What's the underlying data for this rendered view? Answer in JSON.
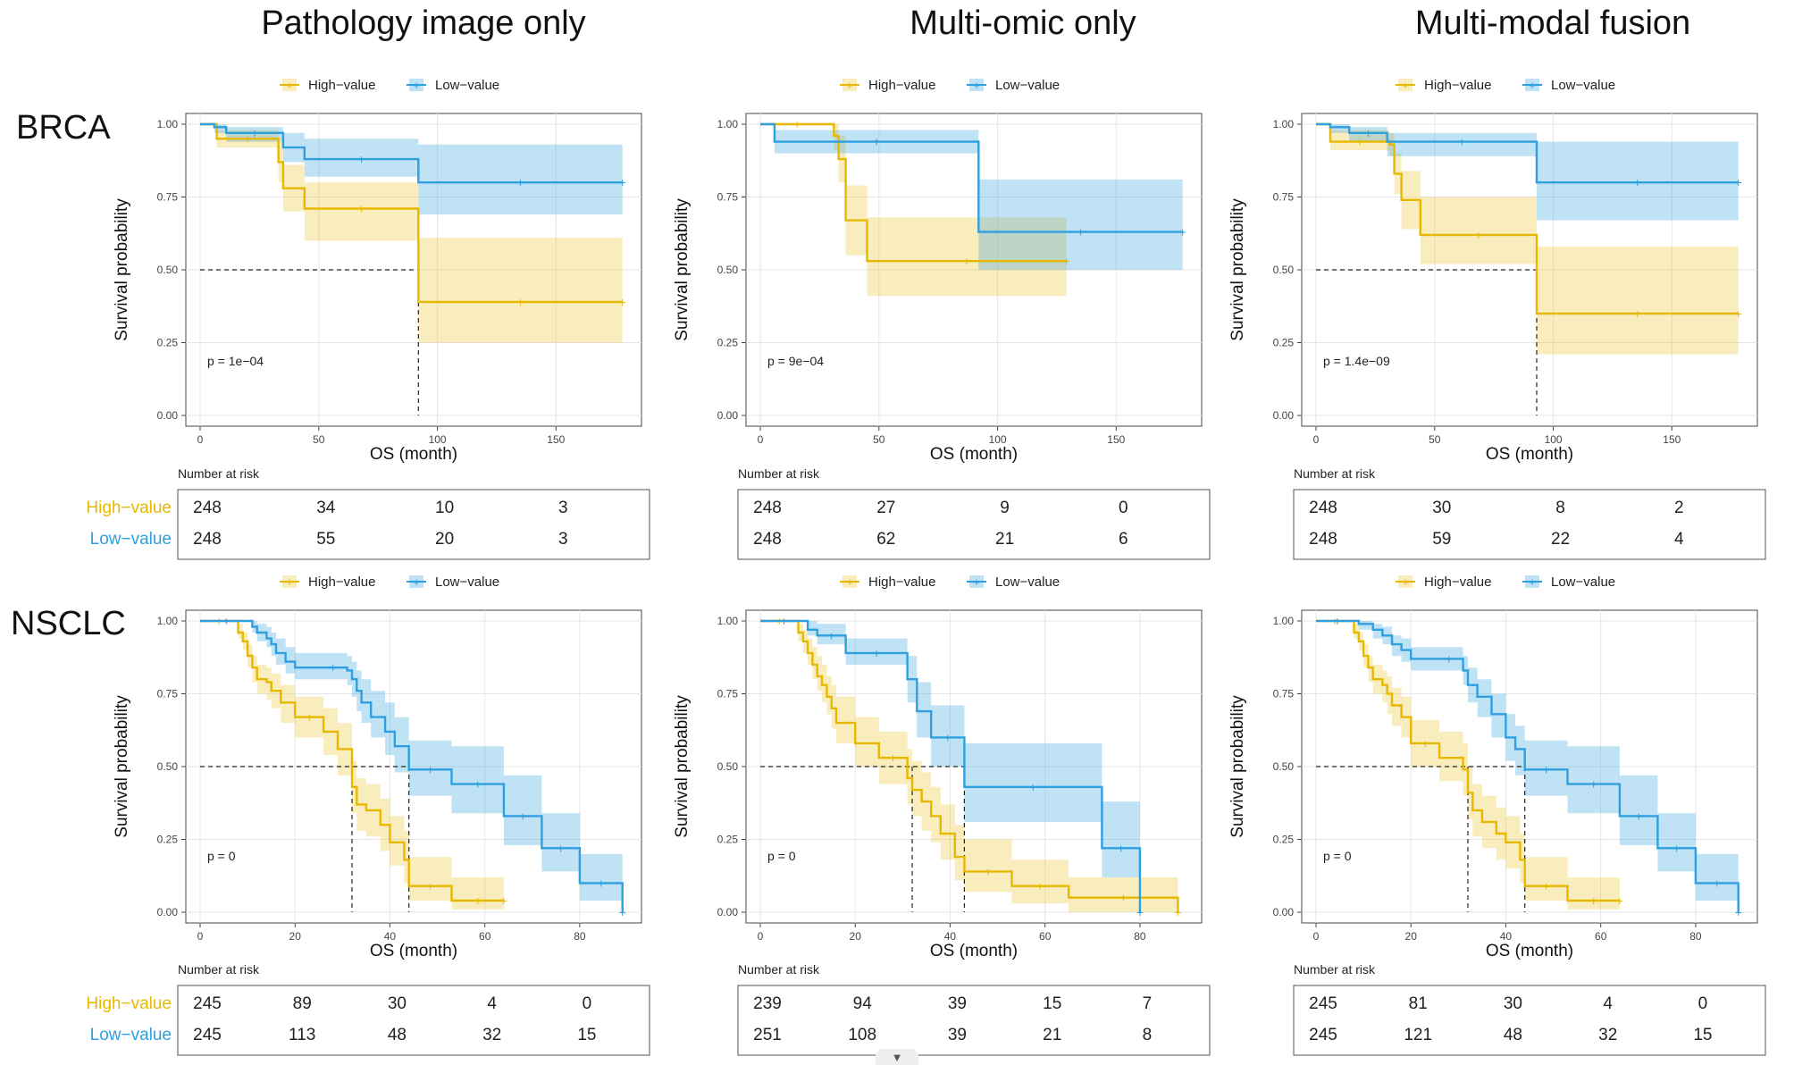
{
  "column_titles": [
    "Pathology image only",
    "Multi-omic only",
    "Multi-modal fusion"
  ],
  "row_labels": [
    "BRCA",
    "NSCLC"
  ],
  "colors": {
    "high": "#E7B800",
    "low": "#2E9FDF",
    "high_text": "#E7B800",
    "low_text": "#2E9FDF"
  },
  "legend": {
    "high": "High−value",
    "low": "Low−value"
  },
  "risk_title": "Number at risk",
  "risk_labels": [
    "High−value",
    "Low−value"
  ],
  "chart_data": [
    {
      "type": "line",
      "panel": "BRCA / Pathology image only",
      "xlabel": "OS (month)",
      "ylabel": "Survival probability",
      "xlim": [
        0,
        180
      ],
      "ylim": [
        0,
        1
      ],
      "xticks": [
        0,
        50,
        100,
        150
      ],
      "yticks": [
        0.0,
        0.25,
        0.5,
        0.75,
        1.0
      ],
      "pvalue": "p = 1e−04",
      "median_x": [
        92
      ],
      "series": [
        {
          "name": "High−value",
          "x": [
            0,
            7,
            33,
            35,
            44,
            92,
            178
          ],
          "y": [
            1.0,
            0.95,
            0.87,
            0.78,
            0.71,
            0.39,
            0.39
          ],
          "lower": [
            1.0,
            0.92,
            0.8,
            0.7,
            0.6,
            0.25,
            0.25
          ],
          "upper": [
            1.0,
            0.98,
            0.94,
            0.86,
            0.8,
            0.61,
            0.61
          ]
        },
        {
          "name": "Low−value",
          "x": [
            0,
            6,
            11,
            35,
            44,
            92,
            178
          ],
          "y": [
            1.0,
            0.99,
            0.97,
            0.92,
            0.88,
            0.8,
            0.8
          ],
          "lower": [
            1.0,
            0.97,
            0.94,
            0.87,
            0.82,
            0.69,
            0.69
          ],
          "upper": [
            1.0,
            1.0,
            0.99,
            0.97,
            0.95,
            0.93,
            0.93
          ]
        }
      ],
      "risk_times": [
        0,
        50,
        100,
        150
      ],
      "risk": [
        [
          248,
          34,
          10,
          3
        ],
        [
          248,
          55,
          20,
          3
        ]
      ]
    },
    {
      "type": "line",
      "panel": "BRCA / Multi-omic only",
      "xlabel": "OS (month)",
      "ylabel": "Survival probability",
      "xlim": [
        0,
        180
      ],
      "ylim": [
        0,
        1
      ],
      "xticks": [
        0,
        50,
        100,
        150
      ],
      "yticks": [
        0.0,
        0.25,
        0.5,
        0.75,
        1.0
      ],
      "pvalue": "p = 9e−04",
      "median_x": [],
      "series": [
        {
          "name": "High−value",
          "x": [
            0,
            31,
            33,
            36,
            45,
            129
          ],
          "y": [
            1.0,
            0.96,
            0.88,
            0.67,
            0.53,
            0.53
          ],
          "lower": [
            1.0,
            0.91,
            0.8,
            0.55,
            0.41,
            0.41
          ],
          "upper": [
            1.0,
            1.0,
            0.96,
            0.79,
            0.68,
            0.68
          ]
        },
        {
          "name": "Low−value",
          "x": [
            0,
            6,
            92,
            178
          ],
          "y": [
            1.0,
            0.94,
            0.63,
            0.63
          ],
          "lower": [
            1.0,
            0.9,
            0.5,
            0.5
          ],
          "upper": [
            1.0,
            0.98,
            0.81,
            0.81
          ]
        }
      ],
      "risk_times": [
        0,
        50,
        100,
        150
      ],
      "risk": [
        [
          248,
          27,
          9,
          0
        ],
        [
          248,
          62,
          21,
          6
        ]
      ]
    },
    {
      "type": "line",
      "panel": "BRCA / Multi-modal fusion",
      "xlabel": "OS (month)",
      "ylabel": "Survival probability",
      "xlim": [
        0,
        180
      ],
      "ylim": [
        0,
        1
      ],
      "xticks": [
        0,
        50,
        100,
        150
      ],
      "yticks": [
        0.0,
        0.25,
        0.5,
        0.75,
        1.0
      ],
      "pvalue": "p = 1.4e−09",
      "median_x": [
        93
      ],
      "series": [
        {
          "name": "High−value",
          "x": [
            0,
            6,
            31,
            33,
            36,
            44,
            93,
            178
          ],
          "y": [
            1.0,
            0.94,
            0.93,
            0.83,
            0.74,
            0.62,
            0.35,
            0.35
          ],
          "lower": [
            1.0,
            0.91,
            0.89,
            0.76,
            0.64,
            0.52,
            0.21,
            0.21
          ],
          "upper": [
            1.0,
            0.98,
            0.97,
            0.9,
            0.84,
            0.75,
            0.58,
            0.58
          ]
        },
        {
          "name": "Low−value",
          "x": [
            0,
            6,
            14,
            30,
            93,
            178
          ],
          "y": [
            1.0,
            0.99,
            0.97,
            0.94,
            0.8,
            0.8
          ],
          "lower": [
            1.0,
            0.97,
            0.94,
            0.89,
            0.67,
            0.67
          ],
          "upper": [
            1.0,
            1.0,
            0.99,
            0.97,
            0.94,
            0.94
          ]
        }
      ],
      "risk_times": [
        0,
        50,
        100,
        150
      ],
      "risk": [
        [
          248,
          30,
          8,
          2
        ],
        [
          248,
          59,
          22,
          4
        ]
      ]
    },
    {
      "type": "line",
      "panel": "NSCLC / Pathology image only",
      "xlabel": "OS (month)",
      "ylabel": "Survival probability",
      "xlim": [
        0,
        90
      ],
      "ylim": [
        0,
        1
      ],
      "xticks": [
        0,
        20,
        40,
        60,
        80
      ],
      "yticks": [
        0.0,
        0.25,
        0.5,
        0.75,
        1.0
      ],
      "pvalue": "p = 0",
      "median_x": [
        32,
        44
      ],
      "series": [
        {
          "name": "High−value",
          "x": [
            0,
            8,
            9,
            10,
            11,
            12,
            14,
            15,
            17,
            20,
            26,
            29,
            32,
            33,
            35,
            38,
            40,
            43,
            44,
            53,
            64
          ],
          "y": [
            1.0,
            0.96,
            0.93,
            0.88,
            0.84,
            0.8,
            0.79,
            0.76,
            0.72,
            0.67,
            0.62,
            0.56,
            0.43,
            0.37,
            0.35,
            0.3,
            0.24,
            0.18,
            0.09,
            0.04,
            0.04
          ],
          "lower": [
            1.0,
            0.94,
            0.9,
            0.84,
            0.79,
            0.75,
            0.73,
            0.7,
            0.65,
            0.6,
            0.54,
            0.47,
            0.34,
            0.28,
            0.26,
            0.21,
            0.16,
            0.1,
            0.04,
            0.01,
            0.01
          ],
          "upper": [
            1.0,
            0.99,
            0.96,
            0.92,
            0.88,
            0.85,
            0.84,
            0.82,
            0.78,
            0.74,
            0.7,
            0.65,
            0.52,
            0.46,
            0.44,
            0.39,
            0.33,
            0.28,
            0.19,
            0.12,
            0.12
          ]
        },
        {
          "name": "Low−value",
          "x": [
            0,
            11,
            12,
            14,
            15,
            16,
            18,
            20,
            25,
            31,
            32,
            33,
            34,
            36,
            39,
            41,
            44,
            53,
            64,
            72,
            80,
            89
          ],
          "y": [
            1.0,
            0.98,
            0.96,
            0.94,
            0.92,
            0.89,
            0.86,
            0.84,
            0.84,
            0.83,
            0.8,
            0.76,
            0.72,
            0.67,
            0.62,
            0.57,
            0.49,
            0.44,
            0.33,
            0.22,
            0.1,
            0.0
          ],
          "lower": [
            1.0,
            0.96,
            0.93,
            0.91,
            0.88,
            0.85,
            0.82,
            0.8,
            0.8,
            0.78,
            0.74,
            0.69,
            0.65,
            0.6,
            0.54,
            0.48,
            0.4,
            0.34,
            0.23,
            0.14,
            0.04,
            0.0
          ],
          "upper": [
            1.0,
            1.0,
            0.99,
            0.98,
            0.96,
            0.94,
            0.91,
            0.89,
            0.89,
            0.88,
            0.86,
            0.83,
            0.8,
            0.76,
            0.72,
            0.67,
            0.59,
            0.57,
            0.47,
            0.34,
            0.2,
            0.2
          ]
        }
      ],
      "risk_times": [
        0,
        20,
        40,
        60,
        80
      ],
      "risk": [
        [
          245,
          89,
          30,
          4,
          0
        ],
        [
          245,
          113,
          48,
          32,
          15
        ]
      ]
    },
    {
      "type": "line",
      "panel": "NSCLC / Multi-omic only",
      "xlabel": "OS (month)",
      "ylabel": "Survival probability",
      "xlim": [
        0,
        90
      ],
      "ylim": [
        0,
        1
      ],
      "xticks": [
        0,
        20,
        40,
        60,
        80
      ],
      "yticks": [
        0.0,
        0.25,
        0.5,
        0.75,
        1.0
      ],
      "pvalue": "p = 0",
      "median_x": [
        32,
        43
      ],
      "series": [
        {
          "name": "High−value",
          "x": [
            0,
            8,
            9,
            10,
            11,
            12,
            13,
            14,
            15,
            16,
            20,
            25,
            31,
            32,
            34,
            36,
            38,
            41,
            43,
            53,
            65,
            88
          ],
          "y": [
            1.0,
            0.96,
            0.93,
            0.89,
            0.85,
            0.81,
            0.78,
            0.74,
            0.7,
            0.65,
            0.58,
            0.53,
            0.46,
            0.42,
            0.38,
            0.33,
            0.27,
            0.19,
            0.14,
            0.09,
            0.05,
            0.0
          ],
          "lower": [
            1.0,
            0.93,
            0.89,
            0.85,
            0.8,
            0.76,
            0.72,
            0.68,
            0.63,
            0.58,
            0.5,
            0.44,
            0.37,
            0.33,
            0.28,
            0.24,
            0.18,
            0.11,
            0.07,
            0.03,
            0.0,
            0.0
          ],
          "upper": [
            1.0,
            0.99,
            0.97,
            0.94,
            0.91,
            0.88,
            0.85,
            0.81,
            0.78,
            0.74,
            0.67,
            0.62,
            0.56,
            0.52,
            0.48,
            0.43,
            0.37,
            0.3,
            0.25,
            0.18,
            0.12,
            0.12
          ]
        },
        {
          "name": "Low−value",
          "x": [
            0,
            10,
            12,
            18,
            31,
            33,
            36,
            43,
            72,
            80
          ],
          "y": [
            1.0,
            0.97,
            0.95,
            0.89,
            0.8,
            0.69,
            0.6,
            0.43,
            0.22,
            0.0
          ],
          "lower": [
            1.0,
            0.95,
            0.92,
            0.85,
            0.72,
            0.6,
            0.5,
            0.31,
            0.12,
            0.0
          ],
          "upper": [
            1.0,
            1.0,
            0.99,
            0.94,
            0.88,
            0.79,
            0.71,
            0.58,
            0.38,
            0.38
          ]
        }
      ],
      "risk_times": [
        0,
        20,
        40,
        60,
        80
      ],
      "risk": [
        [
          239,
          94,
          39,
          15,
          7
        ],
        [
          251,
          108,
          39,
          21,
          8
        ]
      ]
    },
    {
      "type": "line",
      "panel": "NSCLC / Multi-modal fusion",
      "xlabel": "OS (month)",
      "ylabel": "Survival probability",
      "xlim": [
        0,
        90
      ],
      "ylim": [
        0,
        1
      ],
      "xticks": [
        0,
        20,
        40,
        60,
        80
      ],
      "yticks": [
        0.0,
        0.25,
        0.5,
        0.75,
        1.0
      ],
      "pvalue": "p = 0",
      "median_x": [
        32,
        44
      ],
      "series": [
        {
          "name": "High−value",
          "x": [
            0,
            8,
            9,
            10,
            11,
            12,
            14,
            15,
            16,
            18,
            20,
            26,
            31,
            32,
            33,
            35,
            38,
            40,
            43,
            44,
            53,
            64
          ],
          "y": [
            1.0,
            0.96,
            0.93,
            0.88,
            0.84,
            0.8,
            0.78,
            0.75,
            0.71,
            0.67,
            0.58,
            0.53,
            0.49,
            0.41,
            0.35,
            0.31,
            0.27,
            0.24,
            0.18,
            0.09,
            0.04,
            0.04
          ],
          "lower": [
            1.0,
            0.94,
            0.9,
            0.84,
            0.79,
            0.75,
            0.72,
            0.68,
            0.64,
            0.6,
            0.5,
            0.45,
            0.4,
            0.32,
            0.26,
            0.22,
            0.18,
            0.15,
            0.1,
            0.04,
            0.01,
            0.01
          ],
          "upper": [
            1.0,
            0.99,
            0.96,
            0.92,
            0.88,
            0.85,
            0.83,
            0.81,
            0.77,
            0.74,
            0.66,
            0.62,
            0.58,
            0.5,
            0.44,
            0.4,
            0.36,
            0.33,
            0.27,
            0.19,
            0.12,
            0.12
          ]
        },
        {
          "name": "Low−value",
          "x": [
            0,
            9,
            12,
            14,
            16,
            18,
            20,
            25,
            31,
            32,
            34,
            37,
            40,
            42,
            44,
            53,
            64,
            72,
            80,
            89
          ],
          "y": [
            1.0,
            0.99,
            0.97,
            0.95,
            0.92,
            0.9,
            0.87,
            0.87,
            0.83,
            0.78,
            0.74,
            0.68,
            0.6,
            0.56,
            0.49,
            0.44,
            0.33,
            0.22,
            0.1,
            0.0
          ],
          "lower": [
            1.0,
            0.97,
            0.94,
            0.92,
            0.88,
            0.86,
            0.83,
            0.83,
            0.78,
            0.72,
            0.67,
            0.6,
            0.52,
            0.47,
            0.4,
            0.34,
            0.23,
            0.14,
            0.04,
            0.0
          ],
          "upper": [
            1.0,
            1.0,
            0.99,
            0.98,
            0.95,
            0.94,
            0.91,
            0.91,
            0.88,
            0.84,
            0.8,
            0.75,
            0.68,
            0.64,
            0.59,
            0.57,
            0.47,
            0.34,
            0.2,
            0.2
          ]
        }
      ],
      "risk_times": [
        0,
        20,
        40,
        60,
        80
      ],
      "risk": [
        [
          245,
          81,
          30,
          4,
          0
        ],
        [
          245,
          121,
          48,
          32,
          15
        ]
      ]
    }
  ]
}
